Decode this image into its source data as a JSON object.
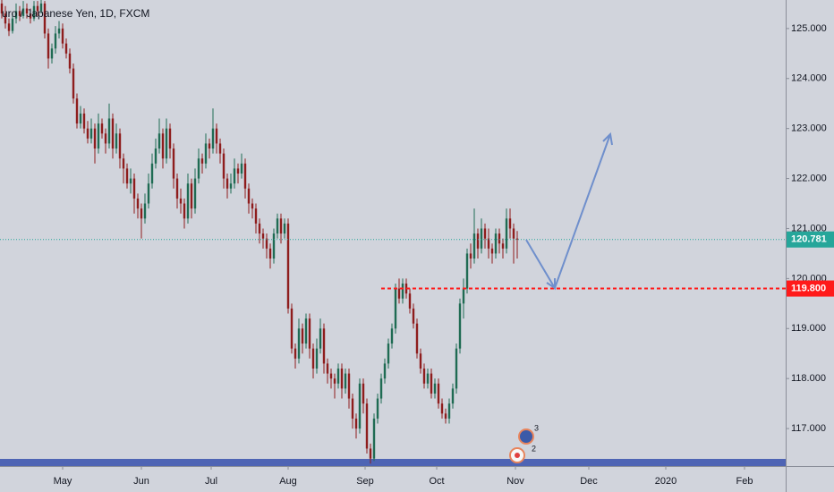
{
  "chart_data": {
    "type": "candlestick",
    "title": "uro / Japanese Yen, 1D, FXCM",
    "up_color": "#1f6b53",
    "down_color": "#8e1d1d",
    "x": [
      0,
      1,
      2,
      3,
      4,
      5,
      6,
      7,
      8,
      9,
      10,
      11,
      12,
      13,
      14,
      15,
      16,
      17,
      18,
      19,
      20,
      21,
      22,
      23,
      24,
      25,
      26,
      27,
      28,
      29,
      30,
      31,
      32,
      33,
      34,
      35,
      36,
      37,
      38,
      39,
      40,
      41,
      42,
      43,
      44,
      45,
      46,
      47,
      48,
      49,
      50,
      51,
      52,
      53,
      54,
      55,
      56,
      57,
      58,
      59,
      60,
      61,
      62,
      63,
      64,
      65,
      66,
      67,
      68,
      69,
      70,
      71,
      72,
      73,
      74,
      75,
      76,
      77,
      78,
      79,
      80,
      81,
      82,
      83,
      84,
      85,
      86,
      87,
      88,
      89,
      90,
      91,
      92,
      93,
      94,
      95,
      96,
      97,
      98,
      99,
      100,
      101,
      102,
      103,
      104,
      105,
      106,
      107,
      108,
      109,
      110,
      111,
      112,
      113,
      114,
      115,
      116,
      117,
      118,
      119,
      120,
      121,
      122,
      123,
      124,
      125,
      126,
      127,
      128,
      129,
      130,
      131,
      132,
      133,
      134,
      135,
      136,
      137,
      138,
      139,
      140,
      141,
      142,
      143,
      144
    ],
    "candles": [
      [
        125.5,
        125.6,
        125.2,
        125.3
      ],
      [
        125.3,
        125.45,
        125.0,
        125.1
      ],
      [
        125.1,
        125.2,
        124.85,
        124.95
      ],
      [
        124.95,
        125.3,
        124.9,
        125.2
      ],
      [
        125.2,
        125.5,
        125.1,
        125.35
      ],
      [
        125.35,
        125.45,
        125.15,
        125.25
      ],
      [
        125.25,
        125.55,
        125.2,
        125.4
      ],
      [
        125.4,
        125.5,
        125.2,
        125.3
      ],
      [
        125.3,
        125.4,
        125.1,
        125.2
      ],
      [
        125.2,
        125.55,
        125.15,
        125.45
      ],
      [
        125.45,
        125.55,
        125.25,
        125.35
      ],
      [
        125.35,
        125.6,
        125.3,
        125.5
      ],
      [
        125.5,
        125.55,
        124.8,
        124.9
      ],
      [
        124.9,
        125.0,
        124.2,
        124.4
      ],
      [
        124.4,
        124.7,
        124.3,
        124.6
      ],
      [
        124.6,
        125.05,
        124.5,
        124.9
      ],
      [
        124.9,
        125.15,
        124.8,
        125.0
      ],
      [
        125.0,
        125.1,
        124.6,
        124.7
      ],
      [
        124.7,
        124.8,
        124.4,
        124.5
      ],
      [
        124.5,
        124.6,
        124.1,
        124.2
      ],
      [
        124.2,
        124.3,
        123.5,
        123.6
      ],
      [
        123.6,
        123.7,
        123.0,
        123.1
      ],
      [
        123.1,
        123.45,
        123.0,
        123.3
      ],
      [
        123.3,
        123.4,
        122.9,
        123.0
      ],
      [
        123.0,
        123.15,
        122.7,
        122.8
      ],
      [
        122.8,
        123.2,
        122.7,
        123.0
      ],
      [
        123.0,
        123.1,
        122.3,
        122.6
      ],
      [
        122.6,
        123.3,
        122.5,
        123.1
      ],
      [
        123.1,
        123.2,
        122.8,
        122.9
      ],
      [
        122.9,
        123.0,
        122.5,
        122.7
      ],
      [
        122.7,
        123.5,
        122.6,
        123.2
      ],
      [
        123.2,
        123.3,
        122.4,
        122.6
      ],
      [
        122.6,
        123.1,
        122.5,
        122.9
      ],
      [
        122.9,
        123.0,
        122.2,
        122.4
      ],
      [
        122.4,
        122.5,
        121.9,
        122.2
      ],
      [
        122.2,
        122.3,
        121.8,
        121.9
      ],
      [
        121.9,
        122.2,
        121.7,
        122.0
      ],
      [
        122.0,
        122.1,
        121.3,
        121.6
      ],
      [
        121.6,
        121.7,
        121.2,
        121.4
      ],
      [
        121.4,
        121.5,
        120.8,
        121.2
      ],
      [
        121.2,
        121.7,
        121.1,
        121.5
      ],
      [
        121.5,
        122.1,
        121.4,
        121.9
      ],
      [
        121.9,
        122.5,
        121.8,
        122.3
      ],
      [
        122.3,
        122.8,
        122.2,
        122.6
      ],
      [
        122.6,
        123.2,
        122.5,
        122.9
      ],
      [
        122.9,
        123.0,
        122.2,
        122.4
      ],
      [
        122.4,
        123.2,
        122.3,
        123.0
      ],
      [
        123.0,
        123.1,
        122.4,
        122.6
      ],
      [
        122.6,
        122.7,
        121.8,
        122.0
      ],
      [
        122.0,
        122.1,
        121.4,
        121.6
      ],
      [
        121.6,
        121.8,
        121.3,
        121.5
      ],
      [
        121.5,
        121.6,
        121.0,
        121.2
      ],
      [
        121.2,
        122.1,
        121.1,
        121.9
      ],
      [
        121.9,
        122.0,
        121.2,
        121.4
      ],
      [
        121.4,
        122.2,
        121.3,
        122.0
      ],
      [
        122.0,
        122.6,
        121.9,
        122.4
      ],
      [
        122.4,
        122.5,
        122.1,
        122.3
      ],
      [
        122.3,
        122.9,
        122.2,
        122.7
      ],
      [
        122.7,
        122.8,
        122.4,
        122.6
      ],
      [
        122.6,
        123.4,
        122.5,
        123.0
      ],
      [
        123.0,
        123.1,
        122.5,
        122.7
      ],
      [
        122.7,
        122.8,
        122.3,
        122.5
      ],
      [
        122.5,
        122.6,
        121.8,
        122.0
      ],
      [
        122.0,
        122.1,
        121.6,
        121.8
      ],
      [
        121.8,
        122.1,
        121.7,
        121.9
      ],
      [
        121.9,
        122.4,
        121.8,
        122.2
      ],
      [
        122.2,
        122.3,
        121.9,
        122.1
      ],
      [
        122.1,
        122.5,
        122.0,
        122.3
      ],
      [
        122.3,
        122.4,
        121.6,
        121.8
      ],
      [
        121.8,
        121.9,
        121.3,
        121.5
      ],
      [
        121.5,
        121.6,
        121.2,
        121.4
      ],
      [
        121.4,
        121.5,
        120.9,
        121.1
      ],
      [
        121.1,
        121.2,
        120.7,
        120.9
      ],
      [
        120.9,
        121.0,
        120.6,
        120.8
      ],
      [
        120.8,
        120.9,
        120.4,
        120.6
      ],
      [
        120.6,
        120.7,
        120.2,
        120.4
      ],
      [
        120.4,
        121.0,
        120.3,
        120.9
      ],
      [
        120.9,
        121.3,
        120.8,
        121.2
      ],
      [
        121.2,
        121.3,
        120.7,
        120.9
      ],
      [
        120.9,
        121.2,
        120.8,
        121.1
      ],
      [
        121.1,
        121.2,
        119.3,
        119.4
      ],
      [
        119.4,
        119.5,
        118.5,
        118.6
      ],
      [
        118.6,
        118.7,
        118.2,
        118.4
      ],
      [
        118.4,
        119.2,
        118.3,
        119.0
      ],
      [
        119.0,
        119.1,
        118.5,
        118.7
      ],
      [
        118.7,
        119.3,
        118.6,
        119.2
      ],
      [
        119.2,
        119.3,
        118.4,
        118.6
      ],
      [
        118.6,
        118.7,
        118.0,
        118.2
      ],
      [
        118.2,
        118.8,
        118.1,
        118.6
      ],
      [
        118.6,
        119.2,
        118.5,
        119.0
      ],
      [
        119.0,
        119.1,
        118.1,
        118.3
      ],
      [
        118.3,
        118.4,
        117.9,
        118.1
      ],
      [
        118.1,
        118.2,
        117.8,
        118.0
      ],
      [
        118.0,
        118.1,
        117.6,
        117.9
      ],
      [
        117.9,
        118.3,
        117.8,
        118.2
      ],
      [
        118.2,
        118.3,
        117.6,
        117.8
      ],
      [
        117.8,
        118.2,
        117.7,
        118.1
      ],
      [
        118.1,
        118.2,
        117.4,
        117.6
      ],
      [
        117.6,
        117.7,
        117.0,
        117.2
      ],
      [
        117.2,
        117.3,
        116.8,
        117.0
      ],
      [
        117.0,
        118.0,
        116.9,
        117.9
      ],
      [
        117.9,
        118.0,
        117.3,
        117.5
      ],
      [
        117.5,
        117.6,
        116.5,
        116.6
      ],
      [
        116.6,
        116.7,
        116.3,
        116.4
      ],
      [
        116.4,
        117.3,
        116.35,
        117.2
      ],
      [
        117.2,
        117.7,
        117.1,
        117.6
      ],
      [
        117.6,
        118.1,
        117.5,
        118.0
      ],
      [
        118.0,
        118.4,
        117.9,
        118.3
      ],
      [
        118.3,
        118.8,
        118.2,
        118.7
      ],
      [
        118.7,
        119.1,
        118.6,
        119.0
      ],
      [
        119.0,
        119.9,
        118.9,
        119.8
      ],
      [
        119.8,
        120.0,
        119.5,
        119.6
      ],
      [
        119.6,
        120.0,
        119.5,
        119.9
      ],
      [
        119.9,
        120.0,
        119.6,
        119.7
      ],
      [
        119.7,
        119.8,
        119.3,
        119.4
      ],
      [
        119.4,
        119.5,
        119.0,
        119.1
      ],
      [
        119.1,
        119.2,
        118.4,
        118.5
      ],
      [
        118.5,
        118.6,
        118.1,
        118.2
      ],
      [
        118.2,
        118.3,
        117.8,
        117.9
      ],
      [
        117.9,
        118.2,
        117.8,
        118.1
      ],
      [
        118.1,
        118.2,
        117.6,
        117.7
      ],
      [
        117.7,
        118.0,
        117.6,
        117.9
      ],
      [
        117.9,
        118.0,
        117.4,
        117.5
      ],
      [
        117.5,
        117.6,
        117.2,
        117.3
      ],
      [
        117.3,
        117.4,
        117.1,
        117.2
      ],
      [
        117.2,
        117.6,
        117.1,
        117.5
      ],
      [
        117.5,
        117.9,
        117.4,
        117.8
      ],
      [
        117.8,
        118.7,
        117.7,
        118.6
      ],
      [
        118.6,
        119.6,
        118.5,
        119.5
      ],
      [
        119.5,
        120.0,
        119.2,
        119.8
      ],
      [
        119.8,
        120.6,
        119.7,
        120.5
      ],
      [
        120.5,
        120.7,
        120.2,
        120.4
      ],
      [
        120.4,
        121.4,
        120.3,
        120.9
      ],
      [
        120.9,
        121.0,
        120.4,
        120.6
      ],
      [
        120.6,
        121.2,
        120.5,
        121.0
      ],
      [
        121.0,
        121.1,
        120.6,
        120.8
      ],
      [
        120.8,
        121.0,
        120.4,
        120.6
      ],
      [
        120.6,
        120.7,
        120.3,
        120.5
      ],
      [
        120.5,
        121.0,
        120.4,
        120.9
      ],
      [
        120.9,
        121.0,
        120.5,
        120.7
      ],
      [
        120.7,
        120.8,
        120.4,
        120.6
      ],
      [
        120.6,
        121.4,
        120.5,
        121.2
      ],
      [
        121.2,
        121.4,
        120.8,
        121.0
      ],
      [
        121.0,
        121.1,
        120.3,
        120.8
      ],
      [
        120.8,
        120.95,
        120.4,
        120.781
      ]
    ],
    "xlim": [
      -0.5,
      219
    ],
    "xticks": [
      {
        "value": 17,
        "label": "May"
      },
      {
        "value": 39,
        "label": "Jun"
      },
      {
        "value": 58.5,
        "label": "Jul"
      },
      {
        "value": 80,
        "label": "Aug"
      },
      {
        "value": 101.5,
        "label": "Sep"
      },
      {
        "value": 121.5,
        "label": "Oct"
      },
      {
        "value": 143.5,
        "label": "Nov"
      },
      {
        "value": 164,
        "label": "Dec"
      },
      {
        "value": 185.5,
        "label": "2020"
      },
      {
        "value": 207.5,
        "label": "Feb"
      }
    ],
    "ylim": [
      116.25,
      125.57
    ],
    "yticks": [
      {
        "value": 117,
        "label": "117.000"
      },
      {
        "value": 118,
        "label": "118.000"
      },
      {
        "value": 119,
        "label": "119.000"
      },
      {
        "value": 120,
        "label": "120.000"
      },
      {
        "value": 121,
        "label": "121.000"
      },
      {
        "value": 122,
        "label": "122.000"
      },
      {
        "value": 123,
        "label": "123.000"
      },
      {
        "value": 124,
        "label": "124.000"
      },
      {
        "value": 125,
        "label": "125.000"
      }
    ],
    "last_price": {
      "value": 120.781,
      "label": "120.781",
      "color": "#26a69a"
    },
    "level": {
      "value": 119.8,
      "label": "119.800",
      "color": "#ff1a1a",
      "from_x": 106
    },
    "markers": [
      "3",
      "2"
    ]
  }
}
